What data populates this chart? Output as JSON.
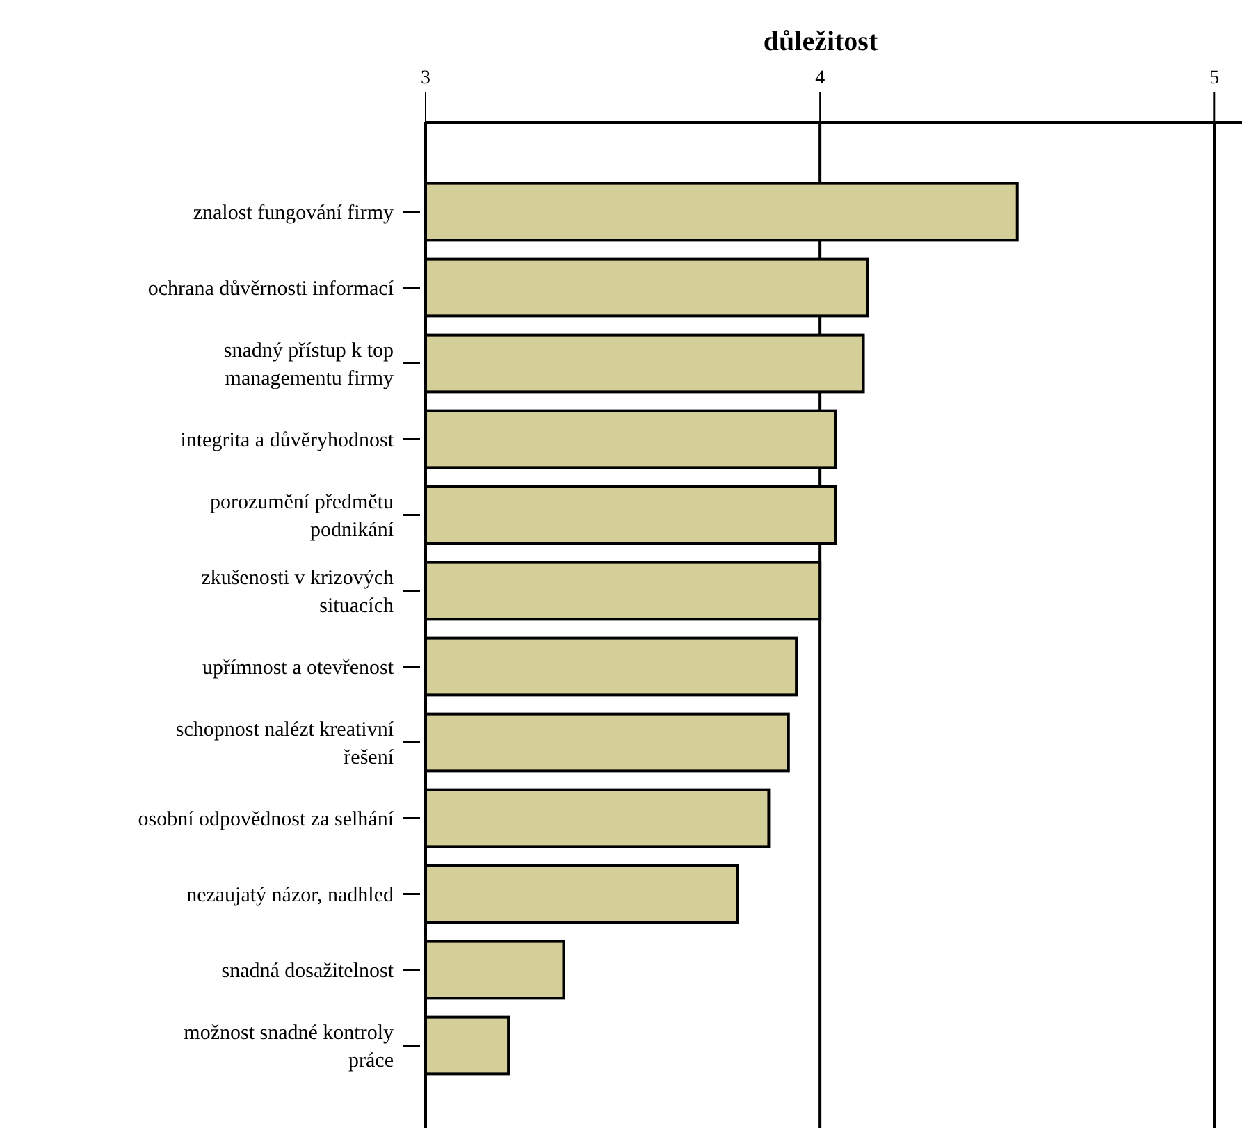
{
  "chart_data": {
    "type": "bar",
    "orientation": "horizontal",
    "title": "důležitost",
    "categories": [
      "znalost fungování firmy",
      "ochrana důvěrnosti informací",
      "snadný přístup k top\nmanagementu firmy",
      "integrita a důvěryhodnost",
      "porozumění předmětu\npodnikání",
      "zkušenosti v krizových\nsituacích",
      "upřímnost a otevřenost",
      "schopnost nalézt kreativní\nřešení",
      "osobní odpovědnost za selhání",
      "nezaujatý názor, nadhled",
      "snadná dosažitelnost",
      "možnost snadné kontroly\npráce"
    ],
    "values": [
      4.5,
      4.12,
      4.11,
      4.04,
      4.04,
      4.0,
      3.94,
      3.92,
      3.87,
      3.79,
      3.35,
      3.21
    ],
    "color": "#d4cf98",
    "xlim": [
      3,
      5.07
    ],
    "xticks": [
      3,
      4,
      5
    ],
    "grid": "x"
  }
}
